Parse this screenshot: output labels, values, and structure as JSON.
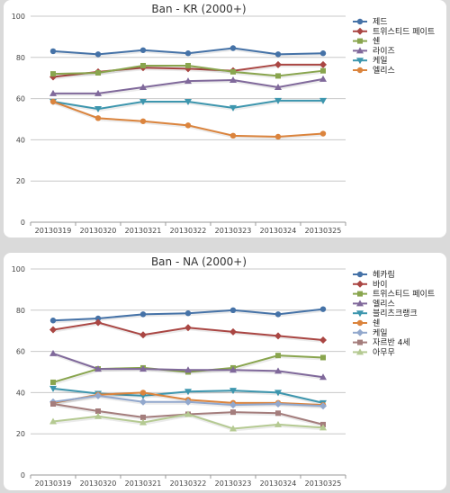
{
  "chart_data": [
    {
      "type": "line",
      "title": "Ban - KR (2000+)",
      "categories": [
        "20130319",
        "20130320",
        "20130321",
        "20130322",
        "20130323",
        "20130324",
        "20130325"
      ],
      "ylim": [
        0,
        100
      ],
      "yticks": [
        0,
        20,
        40,
        60,
        80,
        100
      ],
      "grid": true,
      "legend_position": "right",
      "series": [
        {
          "name": "제드",
          "color": "#4572a7",
          "marker": "circle",
          "values": [
            83,
            81.5,
            83.5,
            82,
            84.5,
            81.5,
            82
          ]
        },
        {
          "name": "트위스티드 페이트",
          "color": "#aa4643",
          "marker": "diamond",
          "values": [
            70.5,
            73,
            75,
            74.5,
            73.5,
            76.5,
            76.5
          ]
        },
        {
          "name": "쉔",
          "color": "#89a54e",
          "marker": "square",
          "values": [
            72,
            72.5,
            76,
            76,
            73,
            71,
            73.5
          ]
        },
        {
          "name": "라이즈",
          "color": "#80699b",
          "marker": "triangle",
          "values": [
            62.5,
            62.5,
            65.5,
            68.5,
            69,
            65.5,
            69.5
          ]
        },
        {
          "name": "케일",
          "color": "#3d96ae",
          "marker": "triangle-down",
          "values": [
            58.5,
            55,
            58.5,
            58.5,
            55.5,
            59,
            59
          ]
        },
        {
          "name": "엘리스",
          "color": "#db843d",
          "marker": "circle",
          "values": [
            58.5,
            50.5,
            49,
            47,
            42,
            41.5,
            43
          ]
        }
      ]
    },
    {
      "type": "line",
      "title": "Ban - NA (2000+)",
      "categories": [
        "20130319",
        "20130320",
        "20130321",
        "20130322",
        "20130323",
        "20130324",
        "20130325"
      ],
      "ylim": [
        0,
        100
      ],
      "yticks": [
        0,
        20,
        40,
        60,
        80,
        100
      ],
      "grid": true,
      "legend_position": "right",
      "series": [
        {
          "name": "헤카림",
          "color": "#4572a7",
          "marker": "circle",
          "values": [
            75,
            76,
            78,
            78.5,
            80,
            78,
            80.5
          ]
        },
        {
          "name": "바이",
          "color": "#aa4643",
          "marker": "diamond",
          "values": [
            70.5,
            74,
            68,
            71.5,
            69.5,
            67.5,
            65.5
          ]
        },
        {
          "name": "트위스티드 페이트",
          "color": "#89a54e",
          "marker": "square",
          "values": [
            45,
            51.5,
            52,
            50,
            52,
            58,
            57
          ]
        },
        {
          "name": "엘리스",
          "color": "#80699b",
          "marker": "triangle",
          "values": [
            59,
            51.5,
            51.5,
            51,
            51,
            50.5,
            47.5
          ]
        },
        {
          "name": "블리츠크랭크",
          "color": "#3d96ae",
          "marker": "triangle-down",
          "values": [
            42,
            39.5,
            38.5,
            40.5,
            41,
            40,
            35
          ]
        },
        {
          "name": "쉔",
          "color": "#db843d",
          "marker": "circle",
          "values": [
            35,
            39,
            40,
            36.5,
            35,
            35,
            34
          ]
        },
        {
          "name": "케일",
          "color": "#92a8cd",
          "marker": "diamond",
          "values": [
            35.5,
            38.5,
            35.5,
            35.5,
            34,
            34.5,
            33.5
          ]
        },
        {
          "name": "자르반 4세",
          "color": "#a47d7c",
          "marker": "square",
          "values": [
            34.5,
            31,
            28,
            29.5,
            30.5,
            30,
            24.5
          ]
        },
        {
          "name": "아무무",
          "color": "#b5ca92",
          "marker": "triangle",
          "values": [
            26,
            28.5,
            25.5,
            29.5,
            22.5,
            24.5,
            23
          ]
        }
      ]
    }
  ]
}
